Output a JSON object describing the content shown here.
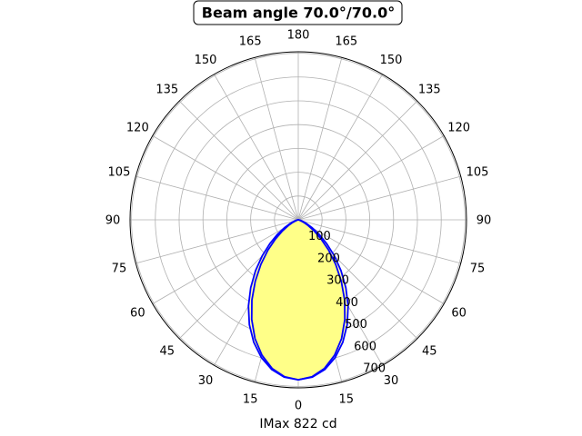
{
  "chart_data": {
    "type": "polar-line",
    "title": "Beam angle 70.0°/70.0°",
    "xlabel": "IMax 822 cd",
    "angle_ticks": [
      "0",
      "15",
      "30",
      "45",
      "60",
      "75",
      "90",
      "105",
      "120",
      "135",
      "150",
      "165",
      "180",
      "165",
      "150",
      "135",
      "120",
      "105",
      "90",
      "75",
      "60",
      "45",
      "30",
      "15"
    ],
    "radial_ticks": [
      100,
      200,
      300,
      400,
      500,
      600,
      700
    ],
    "rlim": [
      0,
      706
    ],
    "grid": true,
    "gamma": [
      0,
      5,
      10,
      15,
      20,
      25,
      30,
      35,
      40,
      45,
      50,
      55,
      60,
      65,
      70,
      75,
      80,
      85,
      90,
      95,
      100,
      105,
      110,
      115,
      120,
      125,
      130,
      135,
      140,
      145,
      150,
      155,
      160,
      165,
      170,
      175,
      180
    ],
    "series": [
      {
        "values": [
          672,
          664,
          639,
          599,
          547,
          486,
          418,
          348,
          279,
          214,
          156,
          107,
          68,
          39,
          19,
          8,
          2,
          0,
          0,
          0,
          0,
          0,
          0,
          0,
          0,
          0,
          0,
          0,
          0,
          0,
          0,
          0,
          0,
          0,
          0,
          0,
          0
        ],
        "color": "#0000ff",
        "fill": "#ffffaa"
      },
      {
        "values": [
          672,
          662,
          634,
          589,
          531,
          462,
          389,
          315,
          244,
          180,
          125,
          81,
          48,
          26,
          11,
          4,
          1,
          0,
          0,
          0,
          0,
          0,
          0,
          0,
          0,
          0,
          0,
          0,
          0,
          0,
          0,
          0,
          0,
          0,
          0,
          0,
          0
        ],
        "color": "#0000ff",
        "fill": "#ffff88"
      }
    ]
  }
}
